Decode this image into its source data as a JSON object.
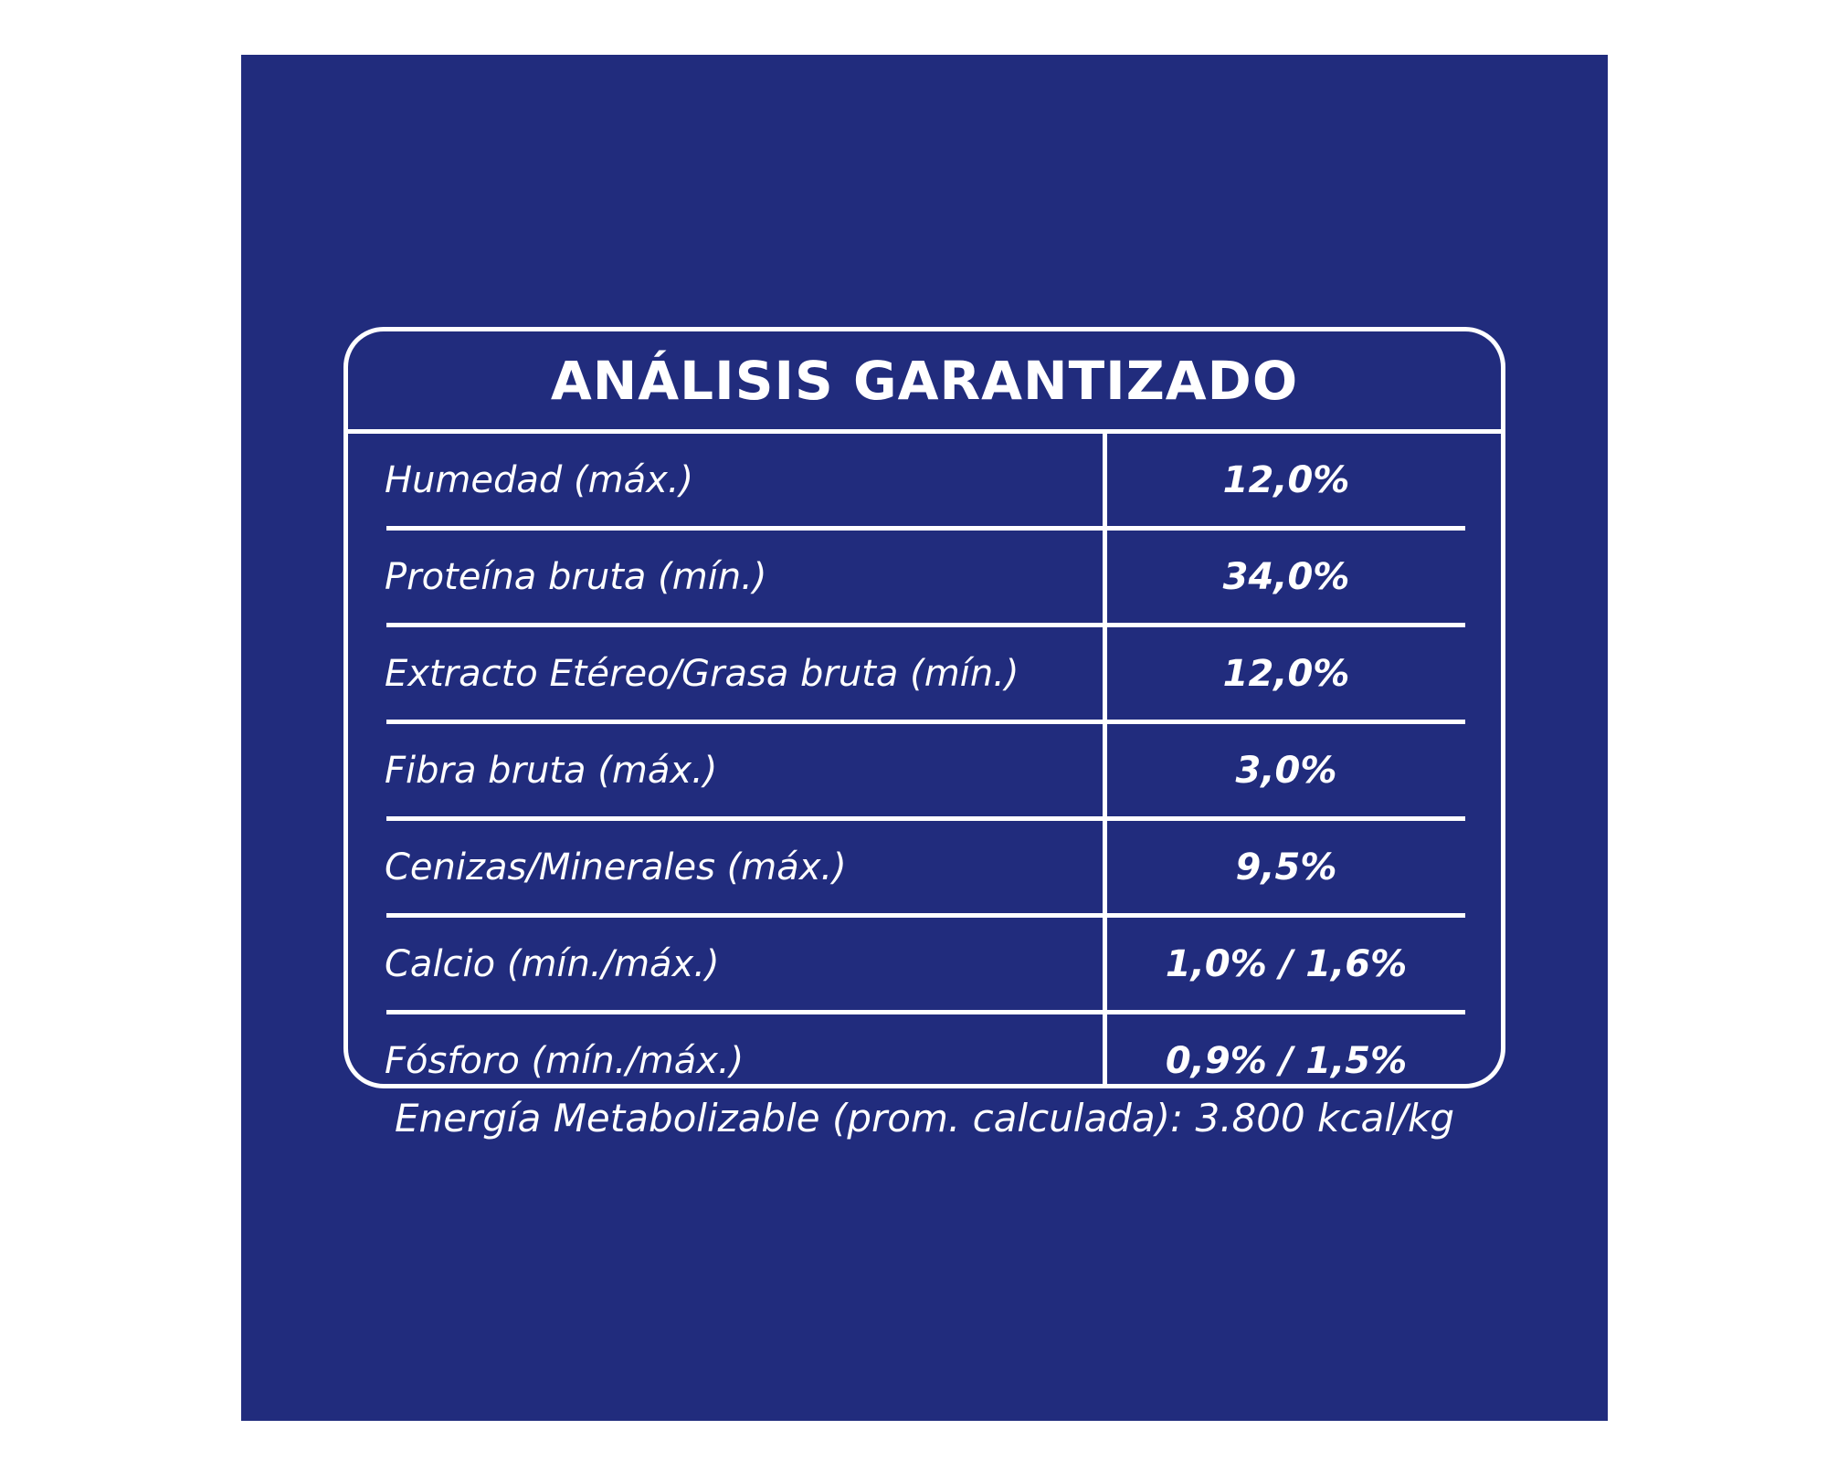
{
  "panel": {
    "background_color": "#212c7d",
    "text_color": "#ffffff"
  },
  "table": {
    "title": "ANÁLISIS GARANTIZADO",
    "rows": [
      {
        "label": "Humedad (máx.)",
        "value": "12,0%"
      },
      {
        "label": "Proteína bruta (mín.)",
        "value": "34,0%"
      },
      {
        "label": "Extracto Etéreo/Grasa bruta (mín.)",
        "value": "12,0%"
      },
      {
        "label": "Fibra bruta (máx.)",
        "value": "3,0%"
      },
      {
        "label": "Cenizas/Minerales (máx.)",
        "value": "9,5%"
      },
      {
        "label": "Calcio (mín./máx.)",
        "value": "1,0% / 1,6%"
      },
      {
        "label": "Fósforo (mín./máx.)",
        "value": "0,9% / 1,5%"
      }
    ]
  },
  "footnote": "Energía Metabolizable (prom. calculada): 3.800 kcal/kg"
}
